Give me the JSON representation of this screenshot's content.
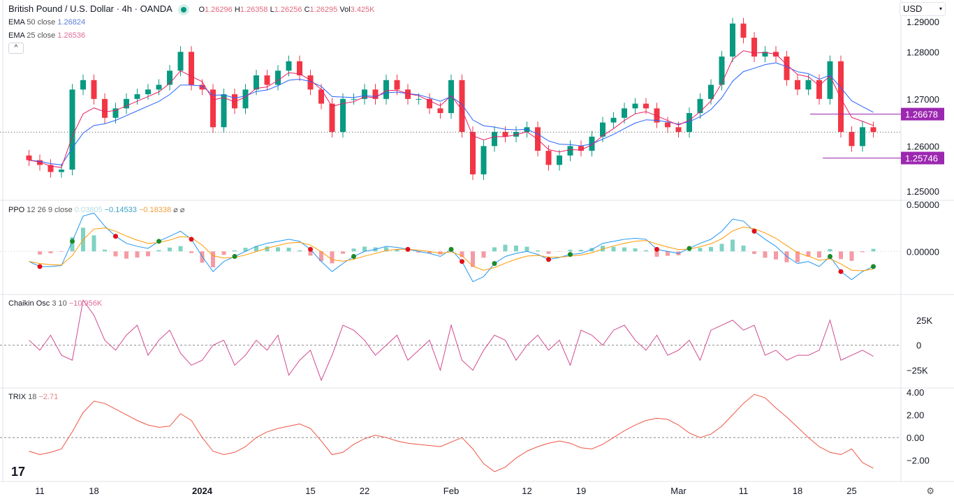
{
  "header": {
    "symbol": "British Pound / U.S. Dollar · 4h · OANDA",
    "open_label": "O",
    "open": "1.26296",
    "high_label": "H",
    "high": "1.26358",
    "low_label": "L",
    "low": "1.26256",
    "close_label": "C",
    "close": "1.26295",
    "vol_label": "Vol",
    "vol": "3.425K"
  },
  "legends": {
    "ema50": {
      "name": "EMA",
      "params": "50 close",
      "value": "1.26824"
    },
    "ema25": {
      "name": "EMA",
      "params": "25 close",
      "value": "1.26536"
    },
    "ppo": {
      "name": "PPO",
      "params": "12 26 9 close",
      "hist": "0.03805",
      "ppo": "−0.14533",
      "signal": "−0.18338",
      "icons": "⌀ ⌀"
    },
    "chaikin": {
      "name": "Chaikin Osc",
      "params": "3 10",
      "value": "−10.956K"
    },
    "trix": {
      "name": "TRIX",
      "params": "18",
      "value": "−2.71"
    }
  },
  "currency_select": "USD",
  "colors": {
    "up": "#089981",
    "down": "#f23645",
    "ema50": "#2962ff",
    "ema25": "#e91e63",
    "level": "#9c27b0",
    "ppo": "#2196f3",
    "signal": "#ff9800",
    "chaikin": "#d04a8f",
    "trix": "#f05545"
  },
  "chart_data": [
    {
      "type": "candlestick",
      "title": "British Pound / U.S. Dollar · 4h · OANDA",
      "x_ticks": [
        {
          "label": "11",
          "index": 1
        },
        {
          "label": "18",
          "index": 6
        },
        {
          "label": "2024",
          "index": 16
        },
        {
          "label": "15",
          "index": 26
        },
        {
          "label": "22",
          "index": 31
        },
        {
          "label": "Feb",
          "index": 39
        },
        {
          "label": "12",
          "index": 46
        },
        {
          "label": "19",
          "index": 51
        },
        {
          "label": "Mar",
          "index": 60
        },
        {
          "label": "11",
          "index": 66
        },
        {
          "label": "18",
          "index": 71
        },
        {
          "label": "25",
          "index": 76
        }
      ],
      "y_ticks": [
        "1.29000",
        "1.28000",
        "1.27000",
        "1.26000",
        "1.25000"
      ],
      "ylim": [
        1.2485,
        1.291
      ],
      "close": [
        1.257,
        1.256,
        1.2545,
        1.255,
        1.272,
        1.274,
        1.27,
        1.266,
        1.268,
        1.27,
        1.271,
        1.272,
        1.273,
        1.276,
        1.28,
        1.273,
        1.272,
        1.264,
        1.271,
        1.268,
        1.272,
        1.275,
        1.273,
        1.276,
        1.278,
        1.275,
        1.272,
        1.269,
        1.263,
        1.27,
        1.27,
        1.272,
        1.27,
        1.274,
        1.272,
        1.27,
        1.27,
        1.268,
        1.267,
        1.274,
        1.263,
        1.254,
        1.26,
        1.263,
        1.262,
        1.263,
        1.264,
        1.259,
        1.256,
        1.258,
        1.26,
        1.259,
        1.262,
        1.265,
        1.266,
        1.268,
        1.269,
        1.268,
        1.265,
        1.264,
        1.263,
        1.267,
        1.27,
        1.273,
        1.279,
        1.286,
        1.283,
        1.279,
        1.28,
        1.279,
        1.274,
        1.272,
        1.274,
        1.27,
        1.278,
        1.263,
        1.26,
        1.264,
        1.263
      ],
      "price_labels": [
        {
          "value": "1.26678",
          "level": 1.26678
        },
        {
          "value": "1.25746",
          "level": 1.25746
        }
      ],
      "last_price": 1.26295
    },
    {
      "type": "line",
      "name": "PPO",
      "y_ticks": [
        "0.50000",
        "0.00000"
      ],
      "ylim": [
        -0.42,
        0.5
      ],
      "ppo": [
        -0.1,
        -0.15,
        -0.15,
        -0.14,
        0.1,
        0.35,
        0.38,
        0.25,
        0.15,
        0.08,
        0.05,
        0.03,
        0.1,
        0.15,
        0.2,
        0.12,
        -0.05,
        -0.2,
        -0.1,
        -0.05,
        0.0,
        0.05,
        0.08,
        0.1,
        0.12,
        0.1,
        0.02,
        -0.1,
        -0.2,
        -0.12,
        -0.05,
        0.0,
        0.02,
        0.05,
        0.04,
        0.02,
        0.0,
        -0.02,
        -0.05,
        0.02,
        -0.1,
        -0.3,
        -0.25,
        -0.12,
        -0.05,
        -0.02,
        0.0,
        -0.03,
        -0.08,
        -0.06,
        -0.03,
        -0.02,
        0.02,
        0.08,
        0.1,
        0.12,
        0.13,
        0.12,
        0.02,
        0.0,
        -0.02,
        0.03,
        0.08,
        0.12,
        0.2,
        0.32,
        0.3,
        0.2,
        0.12,
        0.05,
        -0.05,
        -0.12,
        -0.1,
        -0.15,
        -0.05,
        -0.2,
        -0.28,
        -0.2,
        -0.15
      ]
    },
    {
      "type": "line",
      "name": "Chaikin Osc",
      "y_ticks": [
        "25K",
        "0",
        "−25K"
      ],
      "ylim": [
        -42,
        50
      ],
      "values": [
        5,
        -5,
        10,
        -10,
        -15,
        45,
        30,
        5,
        -5,
        10,
        20,
        -10,
        5,
        15,
        -8,
        -20,
        -15,
        0,
        5,
        -20,
        -10,
        5,
        -5,
        10,
        -30,
        -15,
        -5,
        -35,
        -10,
        20,
        15,
        5,
        -10,
        0,
        10,
        -15,
        -5,
        5,
        -25,
        20,
        -15,
        -25,
        -5,
        10,
        5,
        -15,
        0,
        10,
        -5,
        5,
        -20,
        15,
        10,
        0,
        15,
        20,
        5,
        -5,
        10,
        -10,
        -5,
        5,
        -15,
        15,
        20,
        25,
        15,
        20,
        -10,
        -5,
        -15,
        -10,
        -10,
        -5,
        25,
        -15,
        -10,
        -5,
        -11
      ]
    },
    {
      "type": "line",
      "name": "TRIX",
      "y_ticks": [
        "4.00",
        "2.00",
        "0.00",
        "−2.00"
      ],
      "ylim": [
        -3.8,
        4.3
      ],
      "values": [
        -1.2,
        -1.5,
        -1.3,
        -1.0,
        0.5,
        2.2,
        3.2,
        3.0,
        2.5,
        2.0,
        1.5,
        1.1,
        0.9,
        1.0,
        2.1,
        1.5,
        0.0,
        -1.2,
        -1.5,
        -1.3,
        -0.8,
        0.0,
        0.5,
        0.8,
        1.0,
        1.2,
        0.8,
        -0.3,
        -1.5,
        -1.3,
        -0.6,
        -0.1,
        0.2,
        0.0,
        -0.3,
        -0.5,
        -0.6,
        -0.7,
        -0.8,
        -0.4,
        0.0,
        -1.0,
        -2.3,
        -3.0,
        -2.6,
        -1.8,
        -1.2,
        -0.8,
        -0.5,
        -0.3,
        -0.5,
        -0.9,
        -1.0,
        -0.6,
        0.0,
        0.6,
        1.1,
        1.5,
        1.7,
        1.6,
        1.1,
        0.4,
        0.0,
        0.3,
        1.0,
        2.0,
        3.0,
        3.8,
        3.5,
        2.6,
        1.8,
        0.9,
        0.0,
        -0.8,
        -1.3,
        -1.5,
        -1.0,
        -2.2,
        -2.7
      ]
    }
  ]
}
